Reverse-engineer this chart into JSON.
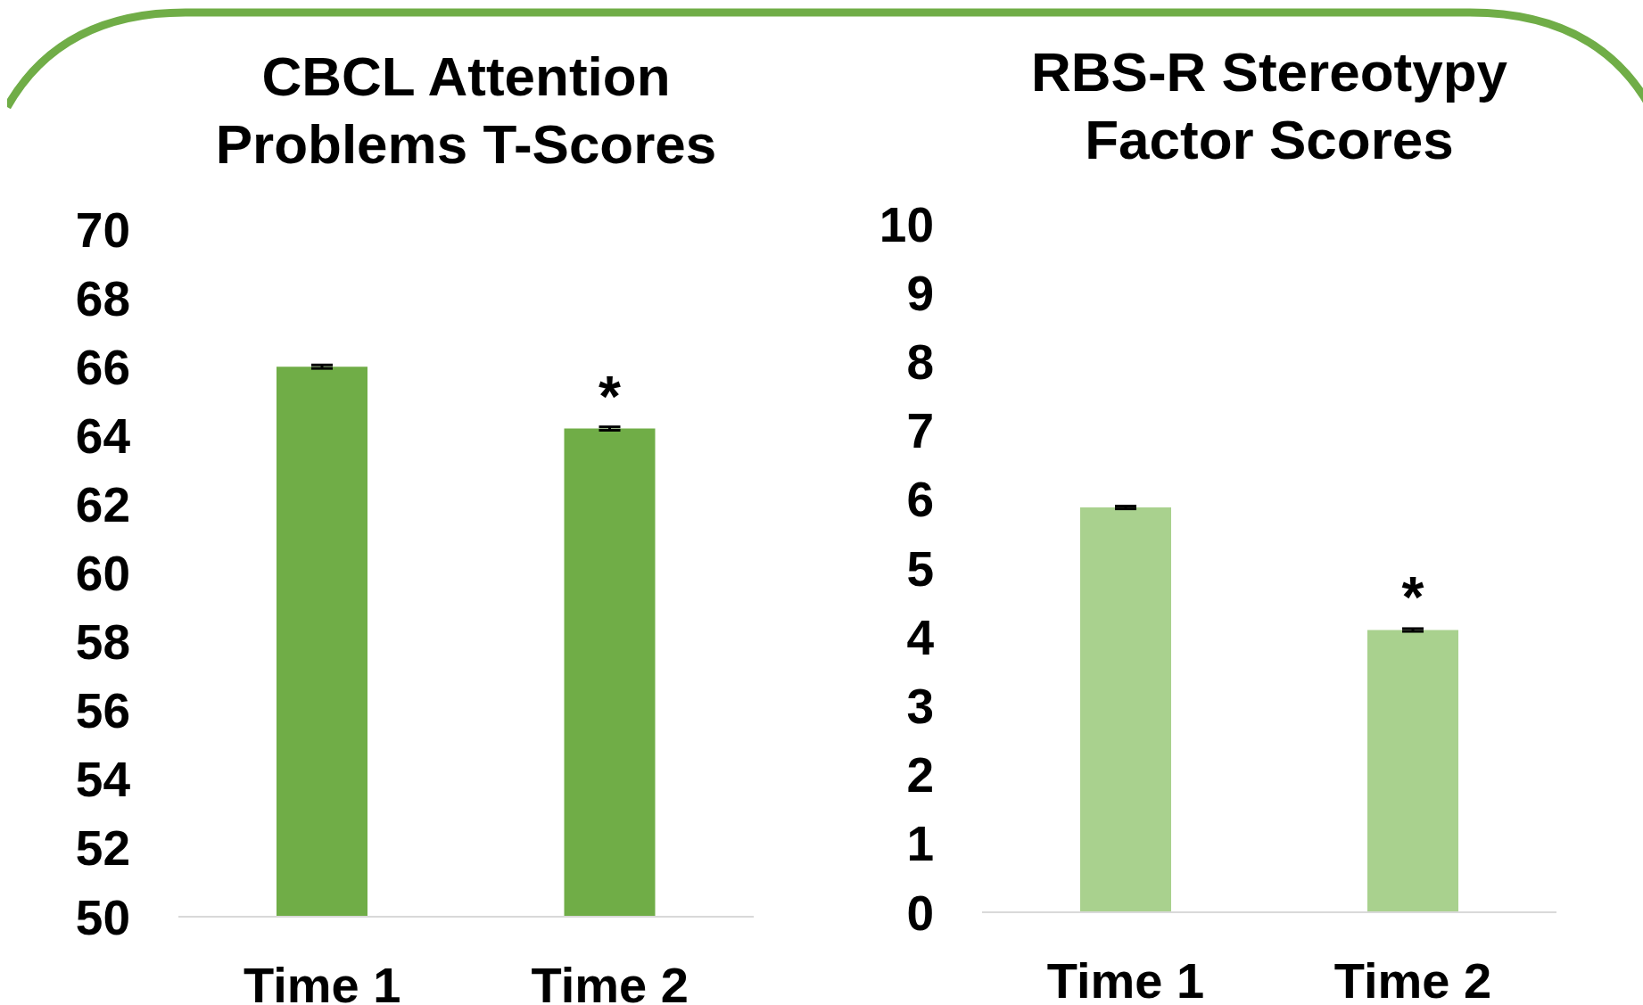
{
  "chart_data": [
    {
      "type": "bar",
      "title": "CBCL Attention Problems T-Scores",
      "categories": [
        "Time 1",
        "Time 2"
      ],
      "values": [
        66.0,
        64.2
      ],
      "errors": [
        0.05,
        0.05
      ],
      "color": "#70ad47",
      "ylim": [
        50,
        70
      ],
      "yticks": [
        50,
        52,
        54,
        56,
        58,
        60,
        62,
        64,
        66,
        68,
        70
      ],
      "grid": false,
      "legend": false,
      "annotations": [
        {
          "text": "*",
          "x": "Time 2",
          "y": 64.2
        }
      ]
    },
    {
      "type": "bar",
      "title": "RBS-R Stereotypy Factor Scores",
      "categories": [
        "Time 1",
        "Time 2"
      ],
      "values": [
        5.88,
        4.1
      ],
      "errors": [
        0.02,
        0.02
      ],
      "color": "#a9d18e",
      "ylim": [
        0,
        10
      ],
      "yticks": [
        0,
        1,
        2,
        3,
        4,
        5,
        6,
        7,
        8,
        9,
        10
      ],
      "grid": false,
      "legend": false,
      "annotations": [
        {
          "text": "*",
          "x": "Time 2",
          "y": 4.1
        }
      ]
    }
  ]
}
